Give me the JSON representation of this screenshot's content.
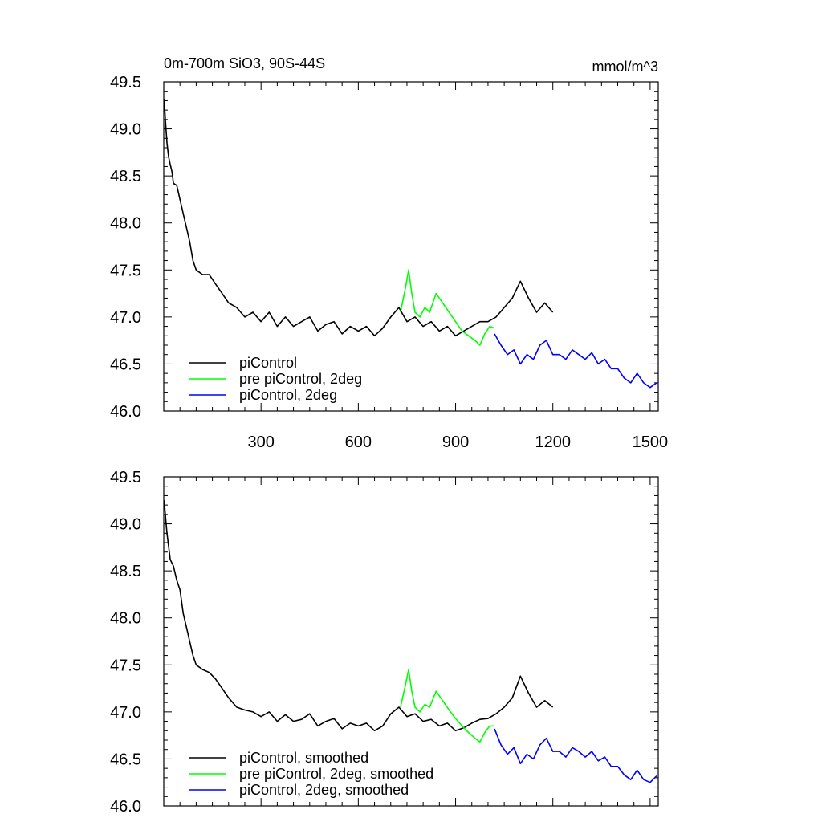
{
  "figure": {
    "title_left": "0m-700m SiO3, 90S-44S",
    "title_right": "mmol/m^3"
  },
  "chart_data": [
    {
      "type": "line",
      "title": "0m-700m SiO3, 90S-44S",
      "units": "mmol/m^3",
      "xlim": [
        0,
        1525
      ],
      "ylim": [
        46.0,
        49.5
      ],
      "xticks": [
        300,
        600,
        900,
        1200,
        1500
      ],
      "xtick_labels": [
        "300",
        "600",
        "900",
        "1200",
        "1500"
      ],
      "yticks": [
        46.0,
        46.5,
        47.0,
        47.5,
        48.0,
        48.5,
        49.0,
        49.5
      ],
      "ytick_labels": [
        "46.0",
        "46.5",
        "47.0",
        "47.5",
        "48.0",
        "48.5",
        "49.0",
        "49.5"
      ],
      "legend_position": "bottom-left",
      "series": [
        {
          "name": "piControl",
          "color": "#000000",
          "points": [
            [
              1,
              49.32
            ],
            [
              5,
              49.1
            ],
            [
              10,
              48.85
            ],
            [
              15,
              48.7
            ],
            [
              20,
              48.62
            ],
            [
              25,
              48.55
            ],
            [
              30,
              48.42
            ],
            [
              40,
              48.4
            ],
            [
              50,
              48.25
            ],
            [
              60,
              48.1
            ],
            [
              70,
              47.95
            ],
            [
              80,
              47.8
            ],
            [
              90,
              47.6
            ],
            [
              100,
              47.5
            ],
            [
              120,
              47.45
            ],
            [
              140,
              47.45
            ],
            [
              160,
              47.35
            ],
            [
              180,
              47.25
            ],
            [
              200,
              47.15
            ],
            [
              225,
              47.1
            ],
            [
              250,
              47.0
            ],
            [
              275,
              47.05
            ],
            [
              300,
              46.95
            ],
            [
              325,
              47.05
            ],
            [
              350,
              46.9
            ],
            [
              375,
              47.0
            ],
            [
              400,
              46.9
            ],
            [
              425,
              46.95
            ],
            [
              450,
              47.0
            ],
            [
              475,
              46.85
            ],
            [
              500,
              46.92
            ],
            [
              525,
              46.95
            ],
            [
              550,
              46.82
            ],
            [
              575,
              46.9
            ],
            [
              600,
              46.85
            ],
            [
              625,
              46.9
            ],
            [
              650,
              46.8
            ],
            [
              675,
              46.88
            ],
            [
              700,
              47.0
            ],
            [
              725,
              47.1
            ],
            [
              750,
              46.95
            ],
            [
              775,
              47.0
            ],
            [
              800,
              46.9
            ],
            [
              825,
              46.95
            ],
            [
              850,
              46.85
            ],
            [
              875,
              46.9
            ],
            [
              900,
              46.8
            ],
            [
              925,
              46.85
            ],
            [
              950,
              46.9
            ],
            [
              975,
              46.95
            ],
            [
              1000,
              46.95
            ],
            [
              1025,
              47.0
            ],
            [
              1050,
              47.1
            ],
            [
              1075,
              47.2
            ],
            [
              1100,
              47.38
            ],
            [
              1125,
              47.2
            ],
            [
              1150,
              47.05
            ],
            [
              1175,
              47.15
            ],
            [
              1200,
              47.05
            ]
          ]
        },
        {
          "name": "pre piControl, 2deg",
          "color": "#00ff00",
          "points": [
            [
              730,
              47.05
            ],
            [
              745,
              47.3
            ],
            [
              755,
              47.5
            ],
            [
              765,
              47.25
            ],
            [
              775,
              47.05
            ],
            [
              790,
              47.0
            ],
            [
              805,
              47.1
            ],
            [
              820,
              47.05
            ],
            [
              840,
              47.25
            ],
            [
              860,
              47.15
            ],
            [
              880,
              47.05
            ],
            [
              900,
              46.95
            ],
            [
              920,
              46.85
            ],
            [
              940,
              46.8
            ],
            [
              960,
              46.75
            ],
            [
              975,
              46.7
            ],
            [
              990,
              46.82
            ],
            [
              1005,
              46.9
            ],
            [
              1020,
              46.88
            ]
          ]
        },
        {
          "name": "piControl, 2deg",
          "color": "#0000ff",
          "points": [
            [
              1020,
              46.82
            ],
            [
              1040,
              46.7
            ],
            [
              1060,
              46.6
            ],
            [
              1080,
              46.65
            ],
            [
              1100,
              46.5
            ],
            [
              1120,
              46.6
            ],
            [
              1140,
              46.55
            ],
            [
              1160,
              46.7
            ],
            [
              1180,
              46.75
            ],
            [
              1200,
              46.6
            ],
            [
              1220,
              46.6
            ],
            [
              1240,
              46.55
            ],
            [
              1260,
              46.65
            ],
            [
              1280,
              46.6
            ],
            [
              1300,
              46.55
            ],
            [
              1320,
              46.62
            ],
            [
              1340,
              46.5
            ],
            [
              1360,
              46.55
            ],
            [
              1380,
              46.45
            ],
            [
              1400,
              46.45
            ],
            [
              1420,
              46.35
            ],
            [
              1440,
              46.3
            ],
            [
              1460,
              46.4
            ],
            [
              1480,
              46.3
            ],
            [
              1500,
              46.25
            ],
            [
              1520,
              46.3
            ]
          ]
        }
      ]
    },
    {
      "type": "line",
      "xlim": [
        0,
        1525
      ],
      "ylim": [
        46.0,
        49.5
      ],
      "xticks": [
        300,
        600,
        900,
        1200,
        1500
      ],
      "yticks": [
        46.0,
        46.5,
        47.0,
        47.5,
        48.0,
        48.5,
        49.0,
        49.5
      ],
      "ytick_labels": [
        "46.0",
        "46.5",
        "47.0",
        "47.5",
        "48.0",
        "48.5",
        "49.0",
        "49.5"
      ],
      "legend_position": "bottom-left",
      "series": [
        {
          "name": "piControl, smoothed",
          "color": "#000000",
          "points": [
            [
              1,
              49.25
            ],
            [
              10,
              48.9
            ],
            [
              20,
              48.62
            ],
            [
              30,
              48.55
            ],
            [
              40,
              48.4
            ],
            [
              50,
              48.3
            ],
            [
              60,
              48.05
            ],
            [
              70,
              47.9
            ],
            [
              80,
              47.75
            ],
            [
              90,
              47.6
            ],
            [
              100,
              47.5
            ],
            [
              120,
              47.45
            ],
            [
              140,
              47.42
            ],
            [
              160,
              47.35
            ],
            [
              180,
              47.25
            ],
            [
              200,
              47.15
            ],
            [
              225,
              47.05
            ],
            [
              250,
              47.02
            ],
            [
              275,
              47.0
            ],
            [
              300,
              46.95
            ],
            [
              325,
              47.0
            ],
            [
              350,
              46.9
            ],
            [
              375,
              46.97
            ],
            [
              400,
              46.9
            ],
            [
              425,
              46.92
            ],
            [
              450,
              46.98
            ],
            [
              475,
              46.85
            ],
            [
              500,
              46.9
            ],
            [
              525,
              46.93
            ],
            [
              550,
              46.82
            ],
            [
              575,
              46.88
            ],
            [
              600,
              46.85
            ],
            [
              625,
              46.88
            ],
            [
              650,
              46.8
            ],
            [
              675,
              46.85
            ],
            [
              700,
              46.98
            ],
            [
              725,
              47.05
            ],
            [
              750,
              46.95
            ],
            [
              775,
              46.98
            ],
            [
              800,
              46.9
            ],
            [
              825,
              46.92
            ],
            [
              850,
              46.85
            ],
            [
              875,
              46.88
            ],
            [
              900,
              46.8
            ],
            [
              925,
              46.83
            ],
            [
              950,
              46.88
            ],
            [
              975,
              46.92
            ],
            [
              1000,
              46.93
            ],
            [
              1025,
              46.98
            ],
            [
              1050,
              47.05
            ],
            [
              1075,
              47.15
            ],
            [
              1100,
              47.38
            ],
            [
              1125,
              47.2
            ],
            [
              1150,
              47.05
            ],
            [
              1175,
              47.12
            ],
            [
              1200,
              47.05
            ]
          ]
        },
        {
          "name": "pre piControl, 2deg, smoothed",
          "color": "#00ff00",
          "points": [
            [
              730,
              47.05
            ],
            [
              745,
              47.28
            ],
            [
              755,
              47.45
            ],
            [
              765,
              47.22
            ],
            [
              775,
              47.05
            ],
            [
              790,
              47.0
            ],
            [
              805,
              47.08
            ],
            [
              820,
              47.05
            ],
            [
              840,
              47.22
            ],
            [
              860,
              47.12
            ],
            [
              880,
              47.02
            ],
            [
              900,
              46.93
            ],
            [
              920,
              46.85
            ],
            [
              940,
              46.78
            ],
            [
              960,
              46.72
            ],
            [
              975,
              46.68
            ],
            [
              990,
              46.78
            ],
            [
              1005,
              46.85
            ],
            [
              1020,
              46.85
            ]
          ]
        },
        {
          "name": "piControl, 2deg, smoothed",
          "color": "#0000ff",
          "points": [
            [
              1020,
              46.82
            ],
            [
              1040,
              46.65
            ],
            [
              1060,
              46.55
            ],
            [
              1080,
              46.62
            ],
            [
              1100,
              46.45
            ],
            [
              1120,
              46.55
            ],
            [
              1140,
              46.5
            ],
            [
              1160,
              46.65
            ],
            [
              1180,
              46.72
            ],
            [
              1200,
              46.58
            ],
            [
              1220,
              46.58
            ],
            [
              1240,
              46.52
            ],
            [
              1260,
              46.62
            ],
            [
              1280,
              46.58
            ],
            [
              1300,
              46.52
            ],
            [
              1320,
              46.58
            ],
            [
              1340,
              46.48
            ],
            [
              1360,
              46.52
            ],
            [
              1380,
              46.42
            ],
            [
              1400,
              46.42
            ],
            [
              1420,
              46.33
            ],
            [
              1440,
              46.28
            ],
            [
              1460,
              46.38
            ],
            [
              1480,
              46.28
            ],
            [
              1500,
              46.25
            ],
            [
              1520,
              46.32
            ]
          ]
        }
      ]
    }
  ]
}
